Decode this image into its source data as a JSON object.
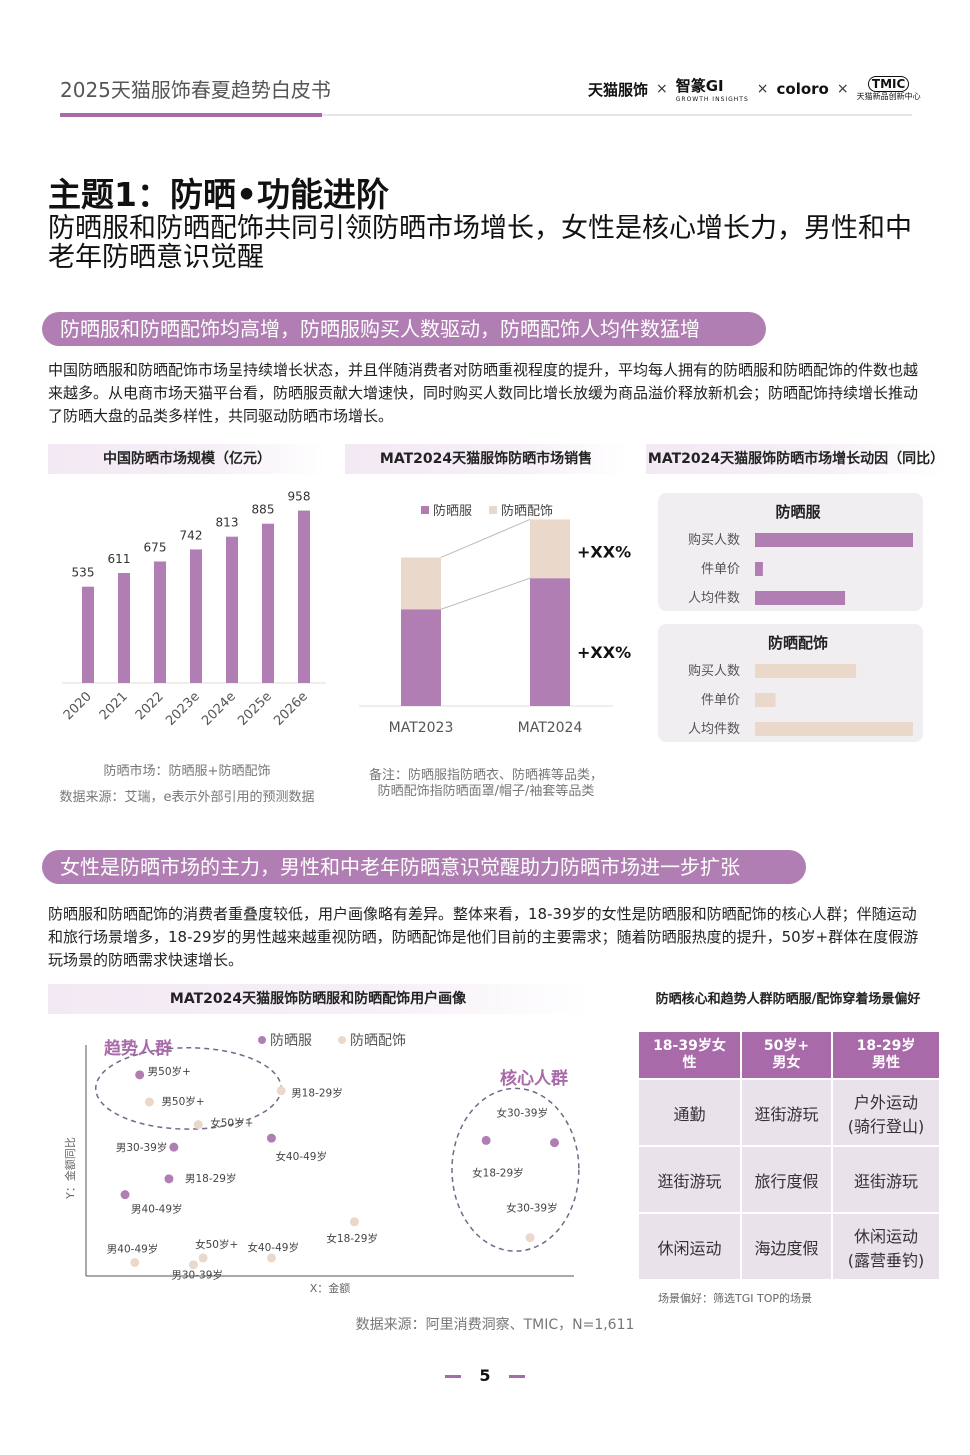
{
  "header": {
    "title": "2025天猫服饰春夏趋势白皮书",
    "logos": [
      "天猫服饰",
      "智篆GI",
      "coloro",
      "TMIC"
    ],
    "logo_sub_zhizhuan": "GROWTH INSIGHTS",
    "logo_sub_tmic": "天猫新品创新中心",
    "separator": "×"
  },
  "headline": {
    "theme": "主题1：防晒•功能进阶",
    "subtitle": "防晒服和防晒配饰共同引领防晒市场增长，女性是核心增长力，男性和中老年防晒意识觉醒"
  },
  "section1": {
    "pill": "防晒服和防晒配饰均高增，防晒服购买人数驱动，防晒配饰人均件数猛增",
    "paragraph": "中国防晒服和防晒配饰市场呈持续增长状态，并且伴随消费者对防晒重视程度的提升，平均每人拥有的防晒服和防晒配饰的件数也越来越多。从电商市场天猫平台看，防晒服贡献大增速快，同时购买人数同比增长放缓为商品溢价释放新机会；防晒配饰持续增长推动了防晒大盘的品类多样性，共同驱动防晒市场增长。"
  },
  "chart_data": [
    {
      "type": "bar",
      "title": "中国防晒市场规模（亿元）",
      "categories": [
        "2020",
        "2021",
        "2022",
        "2023e",
        "2024e",
        "2025e",
        "2026e"
      ],
      "values": [
        535,
        611,
        675,
        742,
        813,
        885,
        958
      ],
      "ylim": [
        0,
        1000
      ],
      "grid": false,
      "color": "#b17eb3",
      "note1": "防晒市场：防晒服+防晒配饰",
      "note2": "数据来源：艾瑞，e表示外部引用的预测数据"
    },
    {
      "type": "bar",
      "stacked": true,
      "title": "MAT2024天猫服饰防晒市场销售",
      "categories": [
        "MAT2023",
        "MAT2024"
      ],
      "series": [
        {
          "name": "防晒服",
          "values": [
            0.56,
            0.74
          ],
          "color": "#b17eb3"
        },
        {
          "name": "防晒配饰",
          "values": [
            0.3,
            0.34
          ],
          "color": "#ead8cb"
        }
      ],
      "ylim": [
        0,
        1.1
      ],
      "growth_labels": [
        "+XX%",
        "+XX%"
      ],
      "legend": "top",
      "note1": "备注：防晒服指防晒衣、防晒裤等品类，",
      "note2": "防晒配饰指防晒面罩/帽子/袖套等品类"
    },
    {
      "type": "bar",
      "orientation": "horizontal",
      "title": "MAT2024天猫服饰防晒市场增长动因（同比）",
      "groups": [
        {
          "name": "防晒服",
          "categories": [
            "购买人数",
            "件单价",
            "人均件数"
          ],
          "values": [
            1.0,
            0.05,
            0.57
          ],
          "color": "#b17eb3"
        },
        {
          "name": "防晒配饰",
          "categories": [
            "购买人数",
            "件单价",
            "人均件数"
          ],
          "values": [
            0.64,
            0.13,
            1.0
          ],
          "color": "#ead8cb"
        }
      ]
    },
    {
      "type": "scatter",
      "title": "MAT2024天猫服饰防晒服和防晒配饰用户画像",
      "xlabel": "X：金额",
      "ylabel": "Y：金额同比",
      "legend": [
        "防晒服",
        "防晒配饰"
      ],
      "xlim": [
        0,
        1
      ],
      "ylim": [
        0,
        1
      ],
      "groups": [
        {
          "label": "趋势人群",
          "cx": 0.21,
          "cy": 0.83,
          "rx": 0.19,
          "ry": 0.18
        },
        {
          "label": "核心人群",
          "cx": 0.88,
          "cy": 0.47,
          "rx": 0.13,
          "ry": 0.36
        }
      ],
      "points": [
        {
          "label": "男50岁+",
          "series": "防晒服",
          "x": 0.11,
          "y": 0.89
        },
        {
          "label": "男50岁+",
          "series": "防晒配饰",
          "x": 0.13,
          "y": 0.77
        },
        {
          "label": "男18-29岁",
          "series": "防晒配饰",
          "x": 0.4,
          "y": 0.82
        },
        {
          "label": "女50岁+",
          "series": "防晒配饰",
          "x": 0.23,
          "y": 0.67
        },
        {
          "label": "男30-39岁",
          "series": "防晒服",
          "x": 0.18,
          "y": 0.57
        },
        {
          "label": "女40-49岁",
          "series": "防晒服",
          "x": 0.38,
          "y": 0.61
        },
        {
          "label": "男18-29岁",
          "series": "防晒服",
          "x": 0.17,
          "y": 0.43
        },
        {
          "label": "男40-49岁",
          "series": "防晒服",
          "x": 0.08,
          "y": 0.36
        },
        {
          "label": "男40-49岁",
          "series": "防晒配饰",
          "x": 0.1,
          "y": 0.06
        },
        {
          "label": "男30-39岁",
          "series": "防晒配饰",
          "x": 0.22,
          "y": 0.05
        },
        {
          "label": "女50岁+",
          "series": "防晒配饰",
          "x": 0.24,
          "y": 0.08
        },
        {
          "label": "女40-49岁",
          "series": "防晒配饰",
          "x": 0.38,
          "y": 0.08
        },
        {
          "label": "女18-29岁",
          "series": "防晒配饰",
          "x": 0.55,
          "y": 0.24
        },
        {
          "label": "女30-39岁",
          "series": "防晒服",
          "x": 0.96,
          "y": 0.59
        },
        {
          "label": "女18-29岁",
          "series": "防晒服",
          "x": 0.82,
          "y": 0.6
        },
        {
          "label": "女30-39岁",
          "series": "防晒配饰",
          "x": 0.91,
          "y": 0.17
        }
      ],
      "source": "数据来源：阿里消费洞察、TMIC，N=1,611"
    }
  ],
  "section2": {
    "pill": "女性是防晒市场的主力，男性和中老年防晒意识觉醒助力防晒市场进一步扩张",
    "paragraph": "防晒服和防晒配饰的消费者重叠度较低，用户画像略有差异。整体来看，18-39岁的女性是防晒服和防晒配饰的核心人群；伴随运动和旅行场景增多，18-29岁的男性越来越重视防晒，防晒配饰是他们目前的主要需求；随着防晒服热度的提升，50岁+群体在度假游玩场景的防晒需求快速增长。"
  },
  "scene_table": {
    "title": "防晒核心和趋势人群防晒服/配饰穿着场景偏好",
    "headers": [
      "18-39岁女性",
      "50岁+男女",
      "18-29岁男性"
    ],
    "header_lines": [
      [
        "18-39岁女",
        "性"
      ],
      [
        "50岁+",
        "男女"
      ],
      [
        "18-29岁",
        "男性"
      ]
    ],
    "rows": [
      [
        [
          "通勤"
        ],
        [
          "逛街游玩"
        ],
        [
          "户外运动",
          "(骑行登山)"
        ]
      ],
      [
        [
          "逛街游玩"
        ],
        [
          "旅行度假"
        ],
        [
          "逛街游玩"
        ]
      ],
      [
        [
          "休闲运动"
        ],
        [
          "海边度假"
        ],
        [
          "休闲运动",
          "(露营垂钓)"
        ]
      ]
    ],
    "footnote": "场景偏好：筛选TGI TOP的场景"
  },
  "page_number": "5"
}
